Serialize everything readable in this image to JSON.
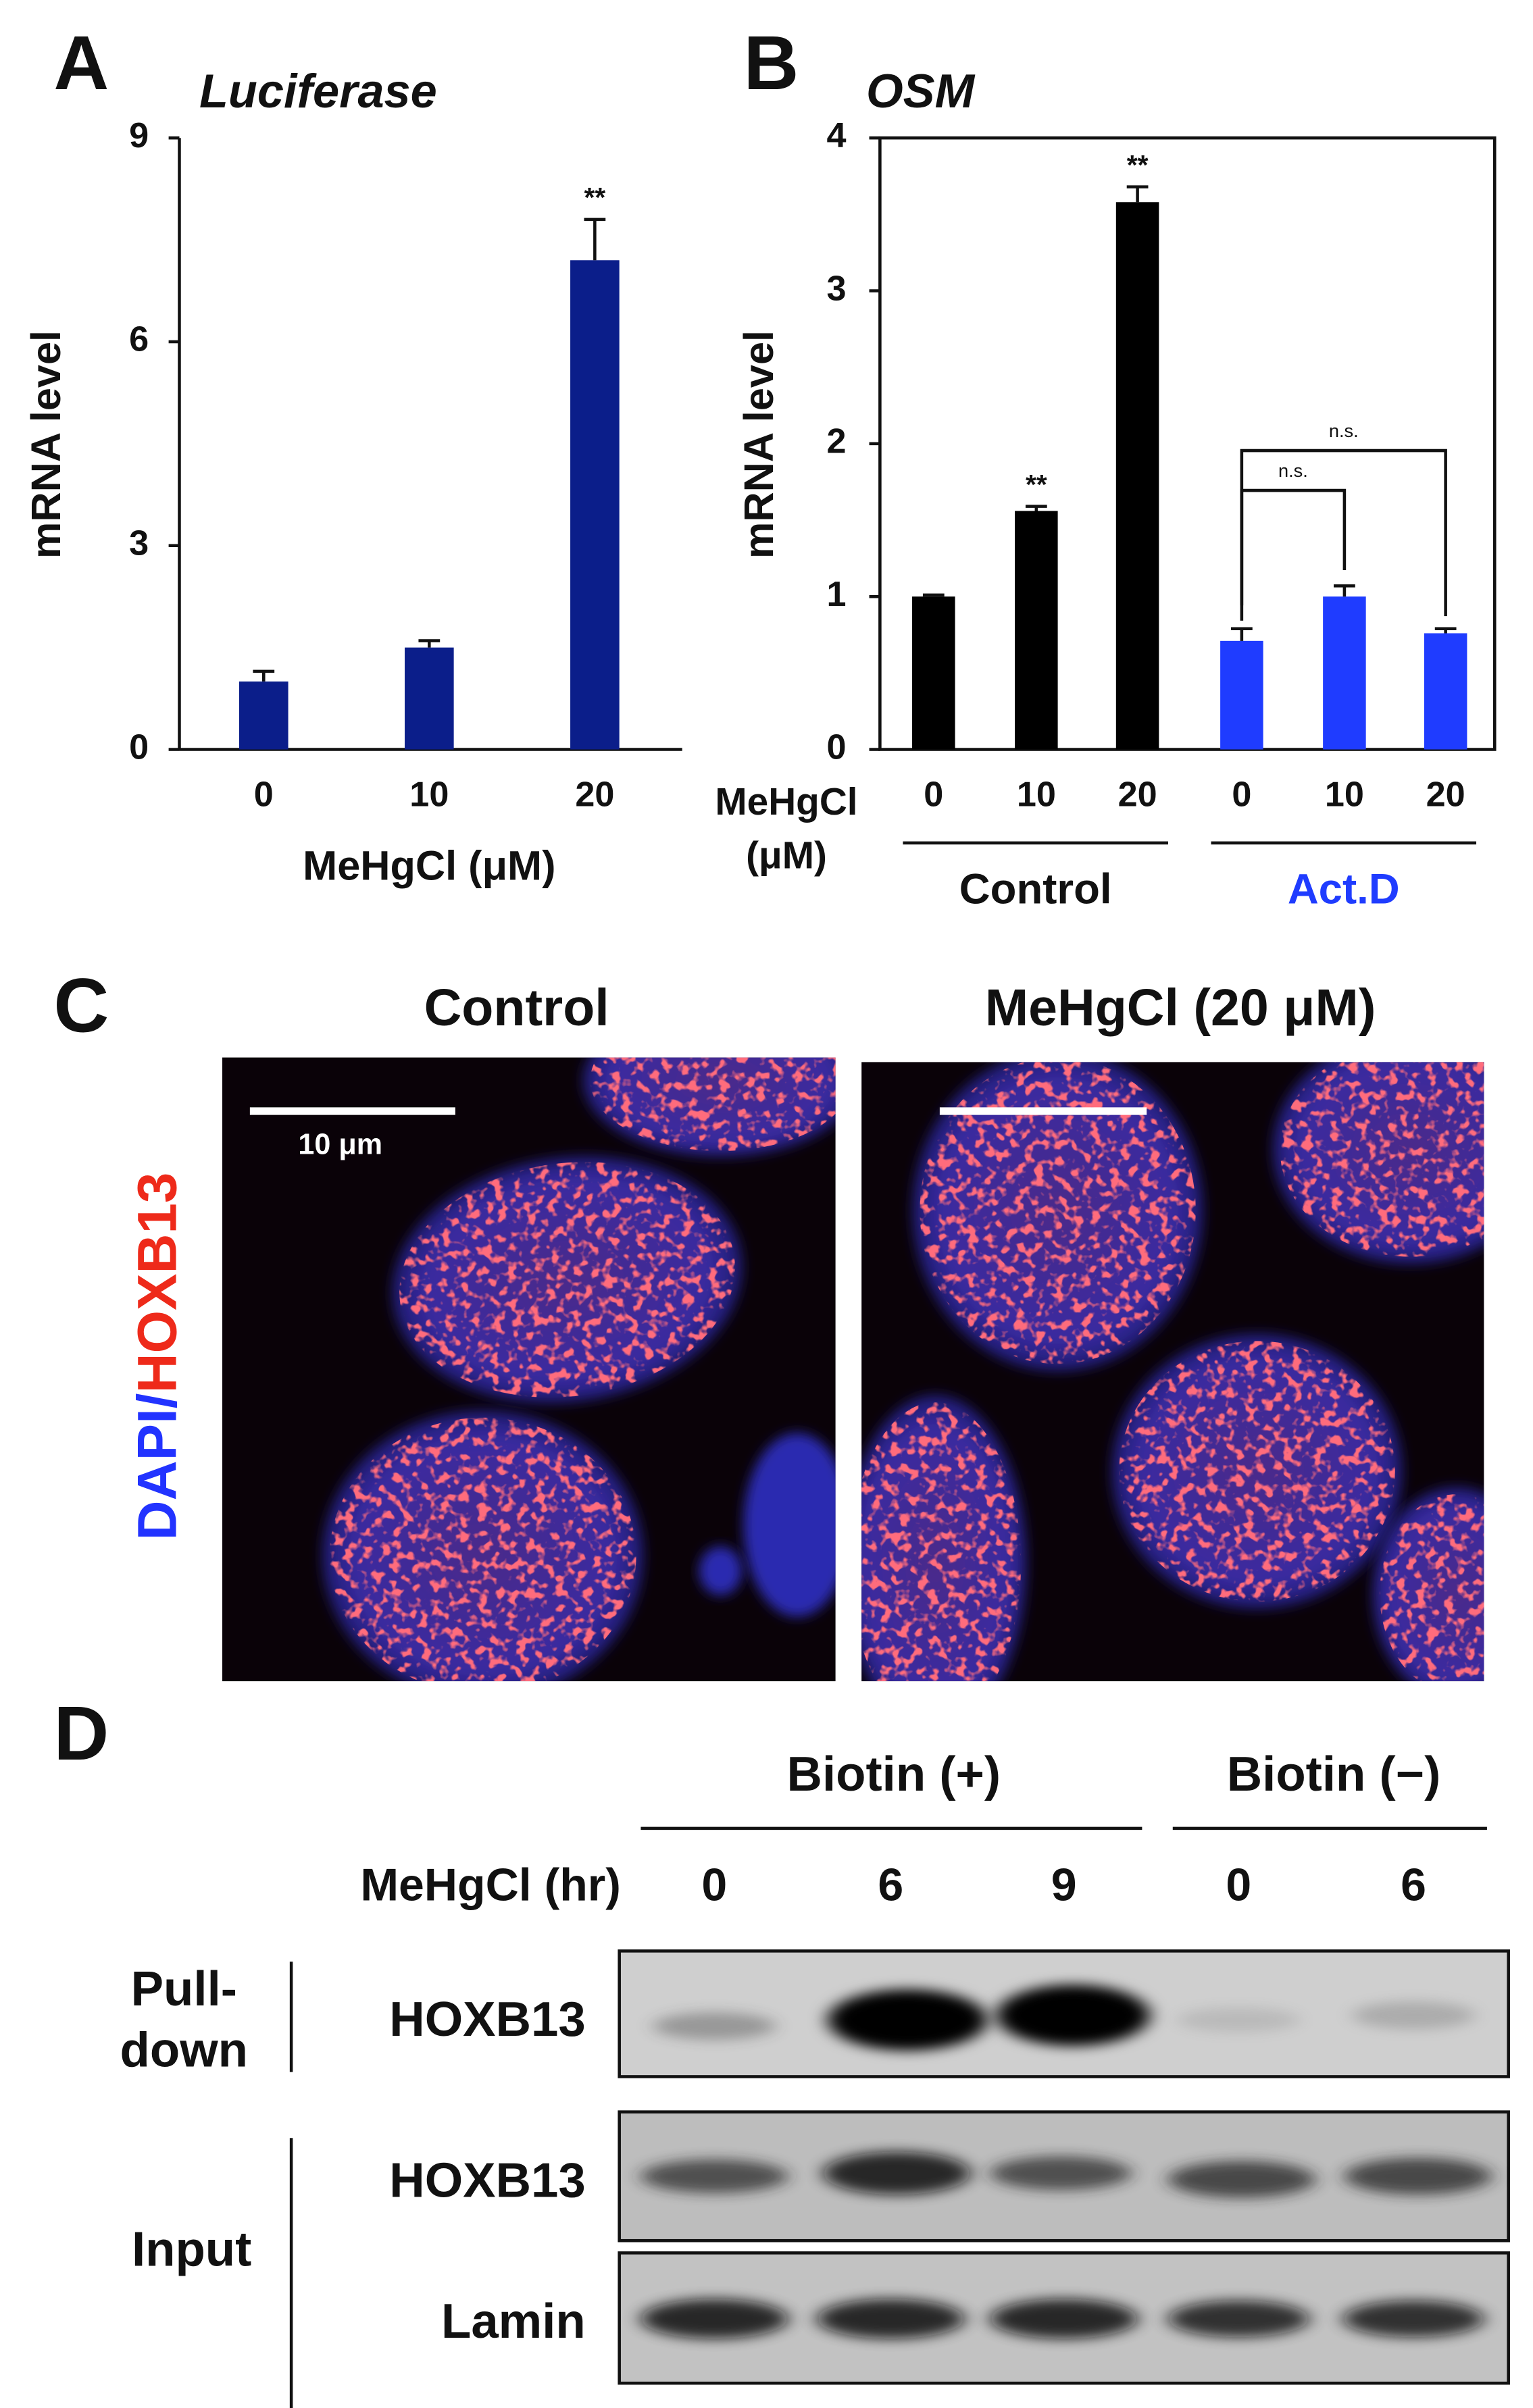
{
  "panel_labels": [
    "A",
    "B",
    "C",
    "D"
  ],
  "chart_data": [
    {
      "type": "bar",
      "title": "Luciferase",
      "xlabel": "MeHgCl (μM)",
      "ylabel": "mRNA level",
      "categories": [
        "0",
        "10",
        "20"
      ],
      "values": [
        1.0,
        1.5,
        7.2
      ],
      "errors": [
        0.15,
        0.1,
        0.6
      ],
      "significance": [
        null,
        null,
        "**"
      ],
      "color": "#0b1e8a",
      "ylim": [
        0,
        9
      ],
      "yticks": [
        0,
        3,
        6,
        9
      ]
    },
    {
      "type": "bar",
      "title": "OSM",
      "xlabel": [
        "MeHgCl",
        "(μM)"
      ],
      "ylabel": "mRNA level",
      "categories": [
        "0",
        "10",
        "20"
      ],
      "series": [
        {
          "name": "Control",
          "color": "#000000",
          "values": [
            1.0,
            1.56,
            3.58
          ],
          "errors": [
            0.01,
            0.03,
            0.1
          ],
          "significance": [
            null,
            "**",
            "**"
          ]
        },
        {
          "name": "Act.D",
          "color": "#1f3cff",
          "values": [
            0.71,
            1.0,
            0.76
          ],
          "errors": [
            0.08,
            0.07,
            0.03
          ],
          "significance": [
            null,
            null,
            null
          ]
        }
      ],
      "comparisons": [
        "n.s.",
        "n.s."
      ],
      "ylim": [
        0,
        4
      ],
      "yticks": [
        0,
        1,
        2,
        3,
        4
      ]
    }
  ],
  "panel_c": {
    "titles": [
      "Control",
      "MeHgCl (20 μM)"
    ],
    "stain_label": [
      "DAPI",
      "/",
      "HOXB13"
    ],
    "scale_bar": "10 μm"
  },
  "panel_d": {
    "groups": [
      "Biotin (+)",
      "Biotin (−)"
    ],
    "row_header": "MeHgCl (hr)",
    "lanes": [
      "0",
      "6",
      "9",
      "0",
      "6"
    ],
    "sections": [
      {
        "label": [
          "Pull-",
          "down"
        ],
        "rows": [
          "HOXB13"
        ]
      },
      {
        "label": [
          "Input"
        ],
        "rows": [
          "HOXB13",
          "Lamin"
        ]
      }
    ]
  }
}
